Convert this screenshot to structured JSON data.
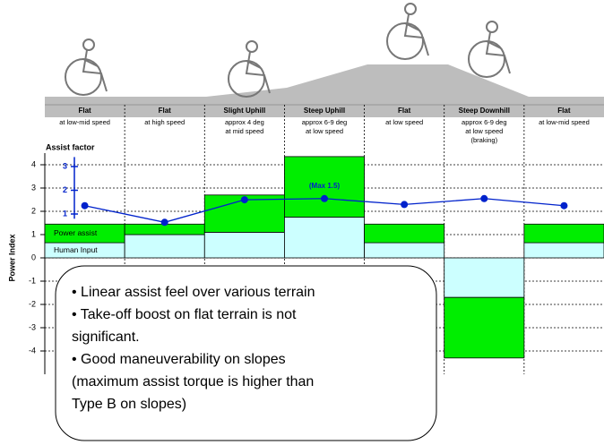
{
  "chart_data": {
    "type": "bar",
    "stacked": true,
    "categories": [
      "Flat",
      "Flat",
      "Slight Uphill",
      "Steep Uphill",
      "Flat",
      "Steep Downhill",
      "Flat"
    ],
    "category_notes": [
      [
        "at low-mid speed"
      ],
      [
        "at high speed"
      ],
      [
        "approx 4 deg",
        "at mid speed"
      ],
      [
        "approx 6-9 deg",
        "at low speed"
      ],
      [
        "at low speed"
      ],
      [
        "approx 6-9 deg",
        "at low speed",
        "(braking)"
      ],
      [
        "at low-mid speed"
      ]
    ],
    "y_label": "Power Index",
    "y2_label": "Assist factor",
    "annotation": "(Max 1.5)",
    "series": [
      {
        "name": "Human Input",
        "color": "#ccffff",
        "values": [
          0.65,
          1.0,
          1.1,
          1.75,
          0.65,
          -1.7,
          0.65
        ]
      },
      {
        "name": "Power assist",
        "color": "#00ee00",
        "values": [
          0.8,
          0.45,
          1.6,
          2.6,
          0.8,
          -2.6,
          0.8
        ]
      },
      {
        "name": "Assist factor",
        "type": "line",
        "axis": "y2",
        "color": "#0022cc",
        "values": [
          1.35,
          0.65,
          1.6,
          1.65,
          1.4,
          1.65,
          1.35
        ]
      }
    ],
    "ylim": [
      -5,
      4.5
    ],
    "yticks": [
      4,
      3,
      2,
      1,
      0,
      -1,
      -2,
      -3,
      -4
    ],
    "y2lim": [
      0.8,
      3.4
    ],
    "y2ticks": [
      1,
      2,
      3
    ],
    "grid": true,
    "notes": [
      "• Linear assist feel over various terrain",
      "• Take-off boost on flat terrain is not",
      "significant.",
      "• Good maneuverability on slopes",
      "(maximum assist torque is higher than",
      "Type B on slopes)"
    ]
  }
}
